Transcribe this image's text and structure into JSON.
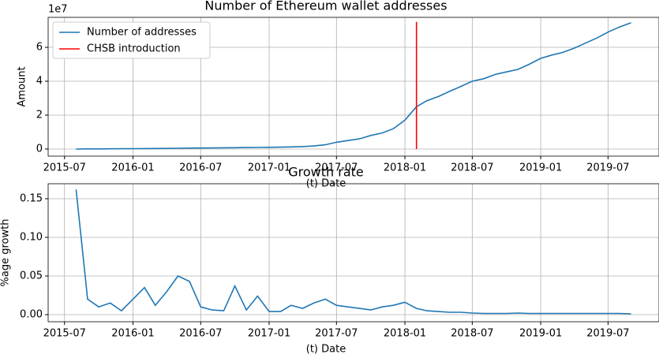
{
  "chart_data": [
    {
      "type": "line",
      "title": "Number of Ethereum wallet addresses",
      "xlabel": "(t) Date",
      "ylabel": "Amount",
      "y_offset_label": "1e7",
      "xlim": [
        "2015-05-18",
        "2019-11-15"
      ],
      "xticks": [
        "2015-07",
        "2016-01",
        "2016-07",
        "2017-01",
        "2017-07",
        "2018-01",
        "2018-07",
        "2019-01",
        "2019-07"
      ],
      "ylim": [
        -4200000,
        77700000
      ],
      "yticks": [
        {
          "value": 0,
          "label": "0"
        },
        {
          "value": 20000000,
          "label": "2"
        },
        {
          "value": 40000000,
          "label": "4"
        },
        {
          "value": 60000000,
          "label": "6"
        }
      ],
      "grid": true,
      "legend": "upper left",
      "series": [
        {
          "name": "Number of addresses",
          "color": "#1f77b4",
          "kind": "line",
          "x": [
            "2015-08",
            "2015-09",
            "2015-10",
            "2015-11",
            "2015-12",
            "2016-01",
            "2016-02",
            "2016-03",
            "2016-04",
            "2016-05",
            "2016-06",
            "2016-07",
            "2016-08",
            "2016-09",
            "2016-10",
            "2016-11",
            "2016-12",
            "2017-01",
            "2017-02",
            "2017-03",
            "2017-04",
            "2017-05",
            "2017-06",
            "2017-07",
            "2017-08",
            "2017-09",
            "2017-10",
            "2017-11",
            "2017-12",
            "2018-01",
            "2018-02",
            "2018-03",
            "2018-04",
            "2018-05",
            "2018-06",
            "2018-07",
            "2018-08",
            "2018-09",
            "2018-10",
            "2018-11",
            "2018-12",
            "2019-01",
            "2019-02",
            "2019-03",
            "2019-04",
            "2019-05",
            "2019-06",
            "2019-07",
            "2019-08",
            "2019-09"
          ],
          "values": [
            10000,
            60000,
            100000,
            140000,
            170000,
            210000,
            260000,
            320000,
            380000,
            450000,
            530000,
            600000,
            660000,
            720000,
            800000,
            860000,
            930000,
            1000000,
            1100000,
            1250000,
            1450000,
            1800000,
            2500000,
            4000000,
            5000000,
            6000000,
            8000000,
            9500000,
            12000000,
            17000000,
            25000000,
            28500000,
            31000000,
            34000000,
            37000000,
            40000000,
            41500000,
            44000000,
            45500000,
            47000000,
            50000000,
            53500000,
            55500000,
            57000000,
            59500000,
            62500000,
            65500000,
            69000000,
            72000000,
            74500000
          ]
        },
        {
          "name": "CHSB introduction",
          "color": "#ff0000",
          "kind": "vline",
          "x": [
            "2018-02",
            "2018-02"
          ],
          "values": [
            0,
            75000000
          ]
        }
      ]
    },
    {
      "type": "line",
      "title": "Growth rate",
      "xlabel": "(t) Date",
      "ylabel": "%age growth",
      "xlim": [
        "2015-05-18",
        "2019-11-15"
      ],
      "xticks": [
        "2015-07",
        "2016-01",
        "2016-07",
        "2017-01",
        "2017-07",
        "2018-01",
        "2018-07",
        "2019-01",
        "2019-07"
      ],
      "ylim": [
        -0.0092,
        0.1694
      ],
      "yticks": [
        {
          "value": 0,
          "label": "0.00"
        },
        {
          "value": 0.05,
          "label": "0.05"
        },
        {
          "value": 0.1,
          "label": "0.10"
        },
        {
          "value": 0.15,
          "label": "0.15"
        }
      ],
      "grid": true,
      "series": [
        {
          "name": "Growth rate",
          "color": "#1f77b4",
          "kind": "line",
          "x": [
            "2015-08",
            "2015-09",
            "2015-10",
            "2015-11",
            "2015-12",
            "2016-01",
            "2016-02",
            "2016-03",
            "2016-04",
            "2016-05",
            "2016-06",
            "2016-07",
            "2016-08",
            "2016-09",
            "2016-10",
            "2016-11",
            "2016-12",
            "2017-01",
            "2017-02",
            "2017-03",
            "2017-04",
            "2017-05",
            "2017-06",
            "2017-07",
            "2017-08",
            "2017-09",
            "2017-10",
            "2017-11",
            "2017-12",
            "2018-01",
            "2018-02",
            "2018-03",
            "2018-04",
            "2018-05",
            "2018-06",
            "2018-07",
            "2018-08",
            "2018-09",
            "2018-10",
            "2018-11",
            "2018-12",
            "2019-01",
            "2019-02",
            "2019-03",
            "2019-04",
            "2019-05",
            "2019-06",
            "2019-07",
            "2019-08",
            "2019-09"
          ],
          "values": [
            0.162,
            0.02,
            0.01,
            0.015,
            0.005,
            0.02,
            0.035,
            0.012,
            0.03,
            0.05,
            0.043,
            0.01,
            0.006,
            0.005,
            0.037,
            0.006,
            0.024,
            0.004,
            0.004,
            0.012,
            0.008,
            0.015,
            0.02,
            0.012,
            0.01,
            0.008,
            0.006,
            0.01,
            0.012,
            0.016,
            0.008,
            0.005,
            0.004,
            0.003,
            0.003,
            0.002,
            0.0015,
            0.0015,
            0.0015,
            0.002,
            0.0015,
            0.0015,
            0.0015,
            0.0015,
            0.0015,
            0.0015,
            0.0015,
            0.0015,
            0.0015,
            0.001
          ]
        }
      ]
    }
  ]
}
